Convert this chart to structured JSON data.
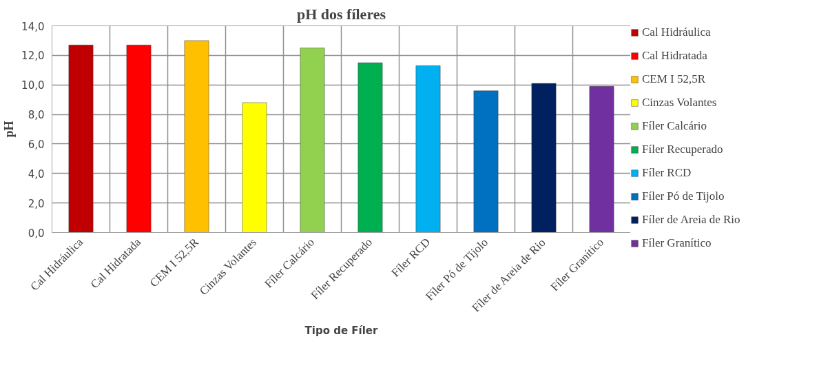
{
  "chart_data": {
    "type": "bar",
    "title": "pH dos fíleres",
    "xlabel": "Tipo de Fíler",
    "ylabel": "pH",
    "categories": [
      "Cal Hidráulica",
      "Cal Hidratada",
      "CEM I 52,5R",
      "Cinzas Volantes",
      "Fíler Calcário",
      "Fíler Recuperado",
      "Fíler RCD",
      "Fíler Pó de Tijolo",
      "Fíler de Areia de Rio",
      "Fíler Granítico"
    ],
    "series": [
      {
        "name": "Cal Hidráulica",
        "color": "#c00000",
        "values": [
          12.7,
          null,
          null,
          null,
          null,
          null,
          null,
          null,
          null,
          null
        ]
      },
      {
        "name": "Cal Hidratada",
        "color": "#ff0000",
        "values": [
          null,
          12.7,
          null,
          null,
          null,
          null,
          null,
          null,
          null,
          null
        ]
      },
      {
        "name": "CEM I 52,5R",
        "color": "#ffc000",
        "values": [
          null,
          null,
          13.0,
          null,
          null,
          null,
          null,
          null,
          null,
          null
        ]
      },
      {
        "name": "Cinzas Volantes",
        "color": "#ffff00",
        "values": [
          null,
          null,
          null,
          8.8,
          null,
          null,
          null,
          null,
          null,
          null
        ]
      },
      {
        "name": "Fíler Calcário",
        "color": "#92d050",
        "values": [
          null,
          null,
          null,
          null,
          12.5,
          null,
          null,
          null,
          null,
          null
        ]
      },
      {
        "name": "Fíler Recuperado",
        "color": "#00b050",
        "values": [
          null,
          null,
          null,
          null,
          null,
          11.5,
          null,
          null,
          null,
          null
        ]
      },
      {
        "name": "Fíler RCD",
        "color": "#00b0f0",
        "values": [
          null,
          null,
          null,
          null,
          null,
          null,
          11.3,
          null,
          null,
          null
        ]
      },
      {
        "name": "Fíler Pó de Tijolo",
        "color": "#0070c0",
        "values": [
          null,
          null,
          null,
          null,
          null,
          null,
          null,
          9.6,
          null,
          null
        ]
      },
      {
        "name": "Fíler de Areia de Rio",
        "color": "#002060",
        "values": [
          null,
          null,
          null,
          null,
          null,
          null,
          null,
          null,
          10.1,
          null
        ]
      },
      {
        "name": "Fíler Granítico",
        "color": "#7030a0",
        "values": [
          null,
          null,
          null,
          null,
          null,
          null,
          null,
          null,
          null,
          9.9
        ]
      }
    ],
    "ylim": [
      0,
      14
    ],
    "yticks": [
      {
        "value": 0,
        "label": "0,0"
      },
      {
        "value": 2,
        "label": "2,0"
      },
      {
        "value": 4,
        "label": "4,0"
      },
      {
        "value": 6,
        "label": "6,0"
      },
      {
        "value": 8,
        "label": "8,0"
      },
      {
        "value": 10,
        "label": "10,0"
      },
      {
        "value": 12,
        "label": "12,0"
      },
      {
        "value": 14,
        "label": "14,0"
      }
    ],
    "grid": true,
    "legend": "right"
  }
}
